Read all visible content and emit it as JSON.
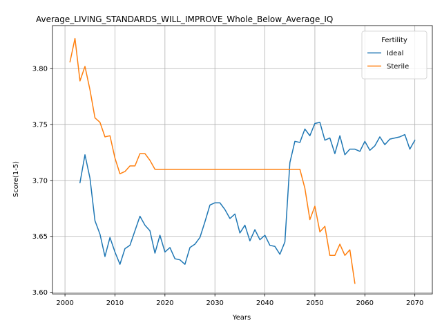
{
  "chart_data": {
    "type": "line",
    "title": "Average_LIVING_STANDARDS_WILL_IMPROVE_Whole_Below_Average_IQ",
    "xlabel": "Years",
    "ylabel": "Score(1-5)",
    "xlim": [
      1997.5,
      2073.5
    ],
    "ylim": [
      3.5985,
      3.8385
    ],
    "xticks": [
      2000,
      2010,
      2020,
      2030,
      2040,
      2050,
      2060,
      2070
    ],
    "yticks": [
      3.6,
      3.65,
      3.7,
      3.75,
      3.8
    ],
    "ytick_labels": [
      "3.60",
      "3.65",
      "3.70",
      "3.75",
      "3.80"
    ],
    "grid": true,
    "legend": {
      "title": "Fertility",
      "position": "top-right"
    },
    "series": [
      {
        "name": "Ideal",
        "color": "#1f77b4",
        "x": [
          2003,
          2004,
          2005,
          2006,
          2007,
          2008,
          2009,
          2010,
          2011,
          2012,
          2013,
          2014,
          2015,
          2016,
          2017,
          2018,
          2019,
          2020,
          2021,
          2022,
          2023,
          2024,
          2025,
          2026,
          2027,
          2028,
          2029,
          2030,
          2031,
          2032,
          2033,
          2034,
          2035,
          2036,
          2037,
          2038,
          2039,
          2040,
          2041,
          2042,
          2043,
          2044,
          2045,
          2046,
          2047,
          2048,
          2049,
          2050,
          2051,
          2052,
          2053,
          2054,
          2055,
          2056,
          2057,
          2058,
          2059,
          2060,
          2061,
          2062,
          2063,
          2064,
          2065,
          2066,
          2067,
          2068,
          2069,
          2070
        ],
        "y": [
          3.698,
          3.723,
          3.702,
          3.664,
          3.652,
          3.632,
          3.649,
          3.636,
          3.625,
          3.639,
          3.642,
          3.655,
          3.668,
          3.66,
          3.655,
          3.635,
          3.651,
          3.636,
          3.64,
          3.63,
          3.629,
          3.625,
          3.64,
          3.643,
          3.649,
          3.663,
          3.678,
          3.68,
          3.68,
          3.674,
          3.666,
          3.67,
          3.653,
          3.66,
          3.646,
          3.656,
          3.647,
          3.651,
          3.642,
          3.641,
          3.634,
          3.645,
          3.716,
          3.735,
          3.734,
          3.746,
          3.74,
          3.751,
          3.752,
          3.736,
          3.738,
          3.724,
          3.74,
          3.723,
          3.728,
          3.728,
          3.726,
          3.735,
          3.727,
          3.731,
          3.739,
          3.732,
          3.737,
          3.738,
          3.739,
          3.741,
          3.728,
          3.736
        ]
      },
      {
        "name": "Sterile",
        "color": "#ff7f0e",
        "x": [
          2001,
          2002,
          2003,
          2004,
          2005,
          2006,
          2007,
          2008,
          2009,
          2010,
          2011,
          2012,
          2013,
          2014,
          2015,
          2016,
          2017,
          2018,
          2019,
          2020,
          2021,
          2022,
          2023,
          2024,
          2025,
          2026,
          2027,
          2028,
          2029,
          2030,
          2031,
          2032,
          2033,
          2034,
          2035,
          2036,
          2037,
          2038,
          2039,
          2040,
          2041,
          2042,
          2043,
          2044,
          2045,
          2046,
          2047,
          2048,
          2049,
          2050,
          2051,
          2052,
          2053,
          2054,
          2055,
          2056,
          2057,
          2058
        ],
        "y": [
          3.806,
          3.827,
          3.789,
          3.802,
          3.781,
          3.756,
          3.752,
          3.739,
          3.74,
          3.72,
          3.706,
          3.708,
          3.713,
          3.713,
          3.724,
          3.724,
          3.718,
          3.71,
          3.71,
          3.71,
          3.71,
          3.71,
          3.71,
          3.71,
          3.71,
          3.71,
          3.71,
          3.71,
          3.71,
          3.71,
          3.71,
          3.71,
          3.71,
          3.71,
          3.71,
          3.71,
          3.71,
          3.71,
          3.71,
          3.71,
          3.71,
          3.71,
          3.71,
          3.71,
          3.71,
          3.71,
          3.71,
          3.693,
          3.665,
          3.677,
          3.654,
          3.659,
          3.633,
          3.633,
          3.643,
          3.633,
          3.638,
          3.608
        ]
      }
    ]
  }
}
